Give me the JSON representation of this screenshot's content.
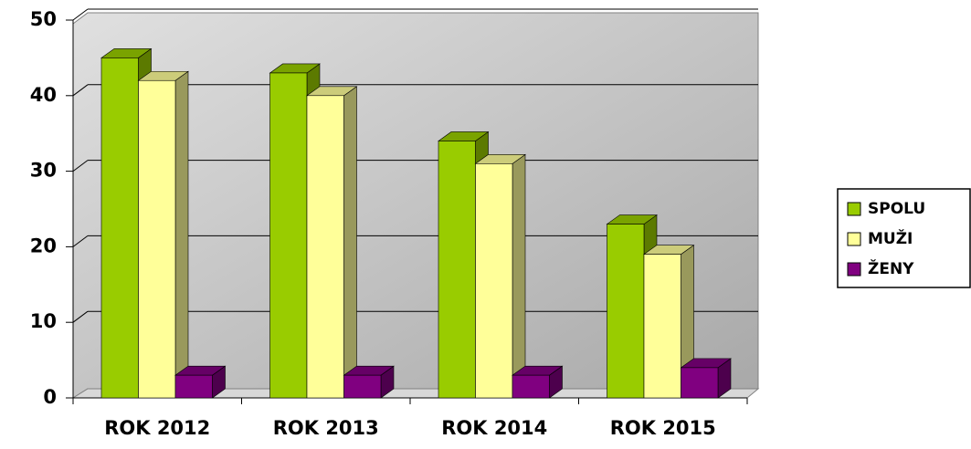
{
  "chart_data": {
    "type": "bar3d",
    "categories": [
      "ROK 2012",
      "ROK 2013",
      "ROK 2014",
      "ROK 2015"
    ],
    "series": [
      {
        "name": "SPOLU",
        "color": "#99cc00",
        "values": [
          45,
          43,
          34,
          23
        ]
      },
      {
        "name": "MUŽI",
        "color": "#ffff99",
        "values": [
          42,
          40,
          31,
          19
        ]
      },
      {
        "name": "ŽENY",
        "color": "#800080",
        "values": [
          3,
          3,
          3,
          4
        ]
      }
    ],
    "ylim": [
      0,
      50
    ],
    "yticks": [
      0,
      10,
      20,
      30,
      40,
      50
    ],
    "grid": true,
    "legend": "right"
  }
}
